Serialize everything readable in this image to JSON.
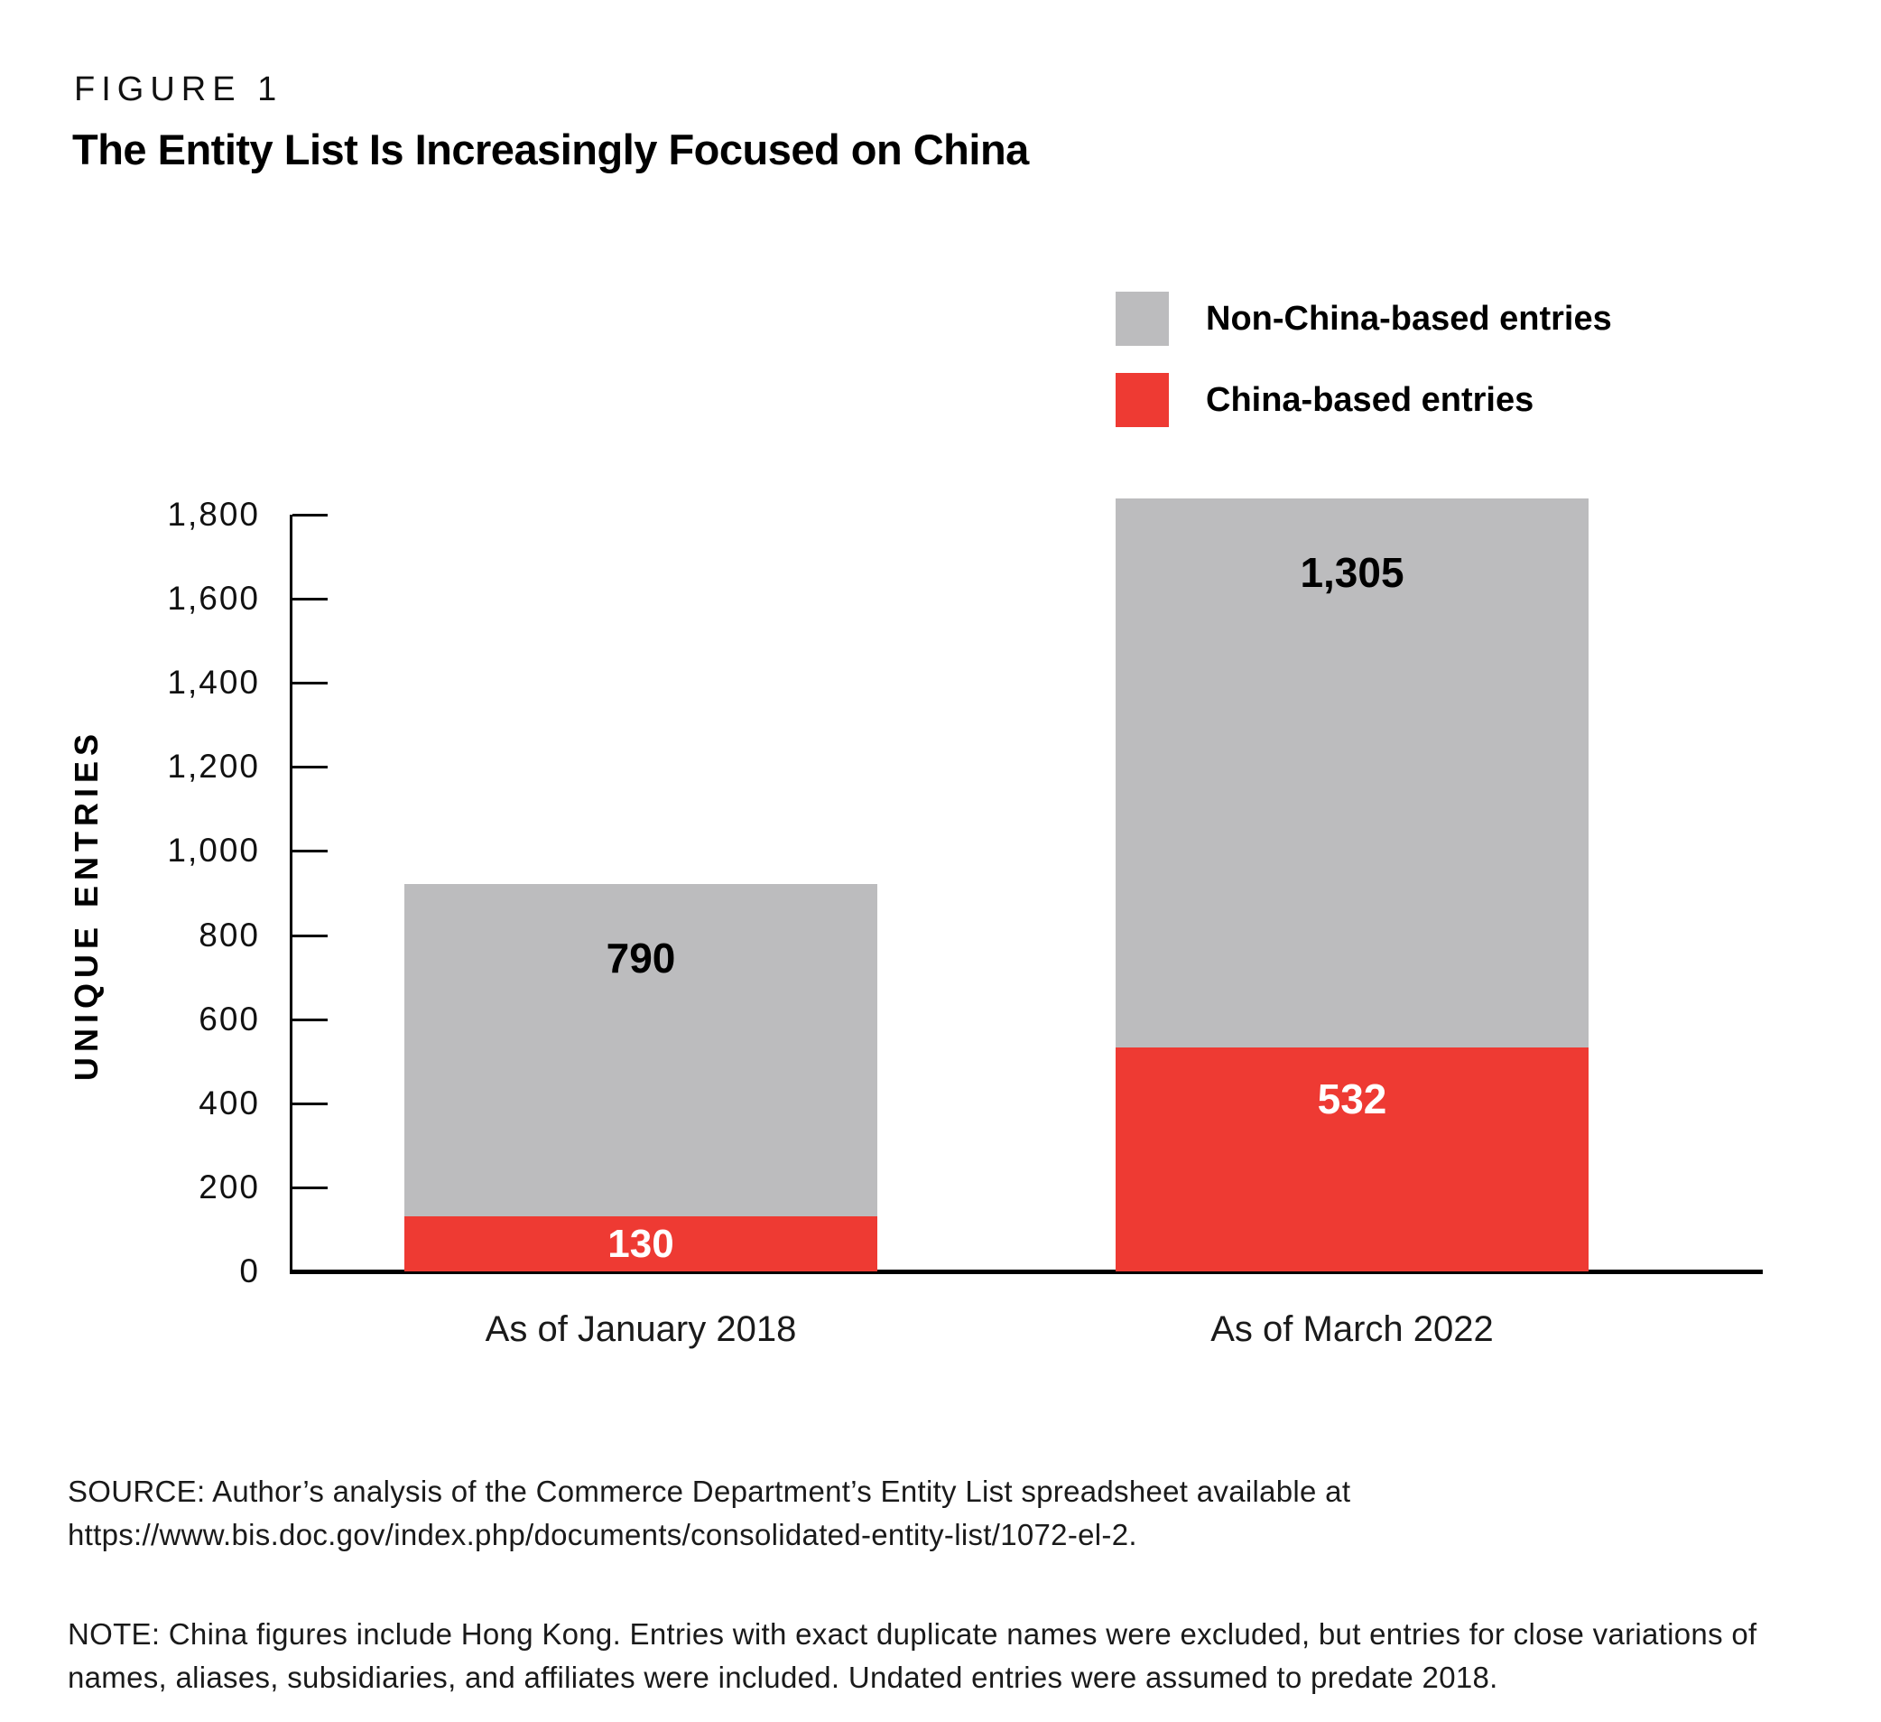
{
  "header": {
    "figure_label": "FIGURE 1",
    "figure_title": "The Entity List Is Increasingly Focused on China"
  },
  "legend": {
    "items": [
      {
        "label": "Non-China-based entries",
        "color": "#bcbcbe"
      },
      {
        "label": "China-based entries",
        "color": "#ee3a33"
      }
    ]
  },
  "chart_data": {
    "type": "bar",
    "stacked": true,
    "title": "The Entity List Is Increasingly Focused on China",
    "categories": [
      "As of January 2018",
      "As of March 2022"
    ],
    "series": [
      {
        "name": "China-based entries",
        "color": "#ee3a33",
        "values": [
          130,
          532
        ],
        "labels": [
          "130",
          "532"
        ],
        "label_color": "#ffffff"
      },
      {
        "name": "Non-China-based entries",
        "color": "#bcbcbe",
        "values": [
          790,
          1305
        ],
        "labels": [
          "790",
          "1,305"
        ],
        "label_color": "#000000"
      }
    ],
    "totals": [
      920,
      1837
    ],
    "xlabel": "",
    "ylabel": "UNIQUE ENTRIES",
    "ylim": [
      0,
      1800
    ],
    "ytick_step": 200,
    "yticks": [
      {
        "v": 0,
        "label": "0"
      },
      {
        "v": 200,
        "label": "200"
      },
      {
        "v": 400,
        "label": "400"
      },
      {
        "v": 600,
        "label": "600"
      },
      {
        "v": 800,
        "label": "800"
      },
      {
        "v": 1000,
        "label": "1,000"
      },
      {
        "v": 1200,
        "label": "1,200"
      },
      {
        "v": 1400,
        "label": "1,400"
      },
      {
        "v": 1600,
        "label": "1,600"
      },
      {
        "v": 1800,
        "label": "1,800"
      }
    ],
    "legend_position": "top-right",
    "grid": false
  },
  "footer": {
    "source": "SOURCE: Author’s analysis of the Commerce Department’s Entity List spreadsheet available at https://www.bis.doc.gov/index.php/documents/consolidated-entity-list/1072-el-2.",
    "note": "NOTE: China figures include Hong Kong. Entries with exact duplicate names were excluded, but entries for close variations of names, aliases, subsidiaries, and affiliates were included. Undated entries were assumed to predate 2018."
  }
}
